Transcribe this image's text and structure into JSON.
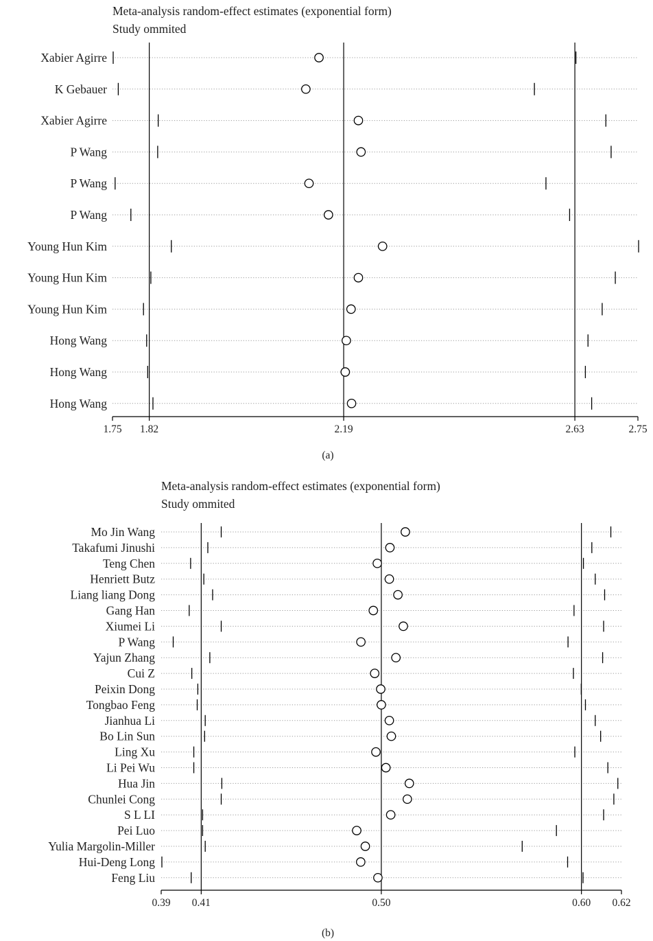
{
  "chart_data": [
    {
      "type": "scatter",
      "panel_label": "(a)",
      "title": "Meta-analysis random-effect estimates (exponential form)",
      "subtitle": "Study ommited",
      "xlim": [
        1.75,
        2.75
      ],
      "xticks": [
        "1.75",
        "1.82",
        "2.19",
        "2.63",
        "2.75"
      ],
      "xtick_values": [
        1.75,
        1.82,
        2.19,
        2.63,
        2.75
      ],
      "reference_lines": [
        1.82,
        2.19,
        2.63
      ],
      "studies": [
        {
          "name": "Xabier Agirre",
          "estimate": 2.143,
          "lower": 1.75,
          "upper": 2.632
        },
        {
          "name": "K Gebauer",
          "estimate": 2.118,
          "lower": 1.761,
          "upper": 2.553
        },
        {
          "name": "Xabier Agirre",
          "estimate": 2.218,
          "lower": 1.837,
          "upper": 2.689
        },
        {
          "name": "P Wang",
          "estimate": 2.223,
          "lower": 1.836,
          "upper": 2.699
        },
        {
          "name": "P Wang",
          "estimate": 2.124,
          "lower": 1.755,
          "upper": 2.575
        },
        {
          "name": "P Wang",
          "estimate": 2.161,
          "lower": 1.785,
          "upper": 2.62
        },
        {
          "name": "Young Hun Kim",
          "estimate": 2.264,
          "lower": 1.862,
          "upper": 2.756
        },
        {
          "name": "Young Hun Kim",
          "estimate": 2.218,
          "lower": 1.823,
          "upper": 2.707
        },
        {
          "name": "Young Hun Kim",
          "estimate": 2.204,
          "lower": 1.809,
          "upper": 2.682
        },
        {
          "name": "Hong Wang",
          "estimate": 2.195,
          "lower": 1.815,
          "upper": 2.655
        },
        {
          "name": "Hong Wang",
          "estimate": 2.193,
          "lower": 1.817,
          "upper": 2.65
        },
        {
          "name": "Hong Wang",
          "estimate": 2.205,
          "lower": 1.827,
          "upper": 2.662
        }
      ]
    },
    {
      "type": "scatter",
      "panel_label": "(b)",
      "title": "Meta-analysis random-effect estimates (exponential form)",
      "subtitle": "Study ommited",
      "xlim": [
        0.39,
        0.62
      ],
      "xticks": [
        "0.39",
        "0.41",
        "0.50",
        "0.60",
        "0.62"
      ],
      "xtick_values": [
        0.39,
        0.41,
        0.5,
        0.6,
        0.62
      ],
      "reference_lines": [
        0.41,
        0.5,
        0.6
      ],
      "studies": [
        {
          "name": "Mo Jin Wang",
          "estimate": 0.512,
          "lower": 0.42,
          "upper": 0.6147
        },
        {
          "name": "Takafumi Jinushi",
          "estimate": 0.5043,
          "lower": 0.4133,
          "upper": 0.6052
        },
        {
          "name": "Teng Chen",
          "estimate": 0.498,
          "lower": 0.4047,
          "upper": 0.601
        },
        {
          "name": "Henriett Butz",
          "estimate": 0.504,
          "lower": 0.4113,
          "upper": 0.6069
        },
        {
          "name": "Liang liang Dong",
          "estimate": 0.5083,
          "lower": 0.4157,
          "upper": 0.6116
        },
        {
          "name": "Gang Han",
          "estimate": 0.496,
          "lower": 0.404,
          "upper": 0.5963
        },
        {
          "name": "Xiumei Li",
          "estimate": 0.511,
          "lower": 0.42,
          "upper": 0.6111
        },
        {
          "name": "P Wang",
          "estimate": 0.4898,
          "lower": 0.396,
          "upper": 0.5933
        },
        {
          "name": "Yajun Zhang",
          "estimate": 0.5073,
          "lower": 0.4143,
          "upper": 0.6106
        },
        {
          "name": "Cui Z",
          "estimate": 0.4967,
          "lower": 0.4053,
          "upper": 0.596
        },
        {
          "name": "Peixin Dong",
          "estimate": 0.4997,
          "lower": 0.4083,
          "upper": 0.5999
        },
        {
          "name": "Tongbao Feng",
          "estimate": 0.5,
          "lower": 0.408,
          "upper": 0.602
        },
        {
          "name": "Jianhua Li",
          "estimate": 0.504,
          "lower": 0.412,
          "upper": 0.6069
        },
        {
          "name": "Bo Lin Sun",
          "estimate": 0.505,
          "lower": 0.4117,
          "upper": 0.6096
        },
        {
          "name": "Ling Xu",
          "estimate": 0.4973,
          "lower": 0.4063,
          "upper": 0.5967
        },
        {
          "name": "Li Pei Wu",
          "estimate": 0.5023,
          "lower": 0.4063,
          "upper": 0.6132
        },
        {
          "name": "Hua Jin",
          "estimate": 0.514,
          "lower": 0.4203,
          "upper": 0.6182
        },
        {
          "name": "Chunlei Cong",
          "estimate": 0.513,
          "lower": 0.42,
          "upper": 0.6162
        },
        {
          "name": "S L LI",
          "estimate": 0.5047,
          "lower": 0.4107,
          "upper": 0.6111
        },
        {
          "name": "Pei Luo",
          "estimate": 0.4877,
          "lower": 0.4107,
          "upper": 0.5875
        },
        {
          "name": "Yulia Margolin-Miller",
          "estimate": 0.492,
          "lower": 0.412,
          "upper": 0.5704
        },
        {
          "name": "Hui-Deng Long",
          "estimate": 0.4897,
          "lower": 0.39,
          "upper": 0.5931
        },
        {
          "name": "Feng Liu",
          "estimate": 0.4983,
          "lower": 0.405,
          "upper": 0.6008
        }
      ]
    }
  ]
}
